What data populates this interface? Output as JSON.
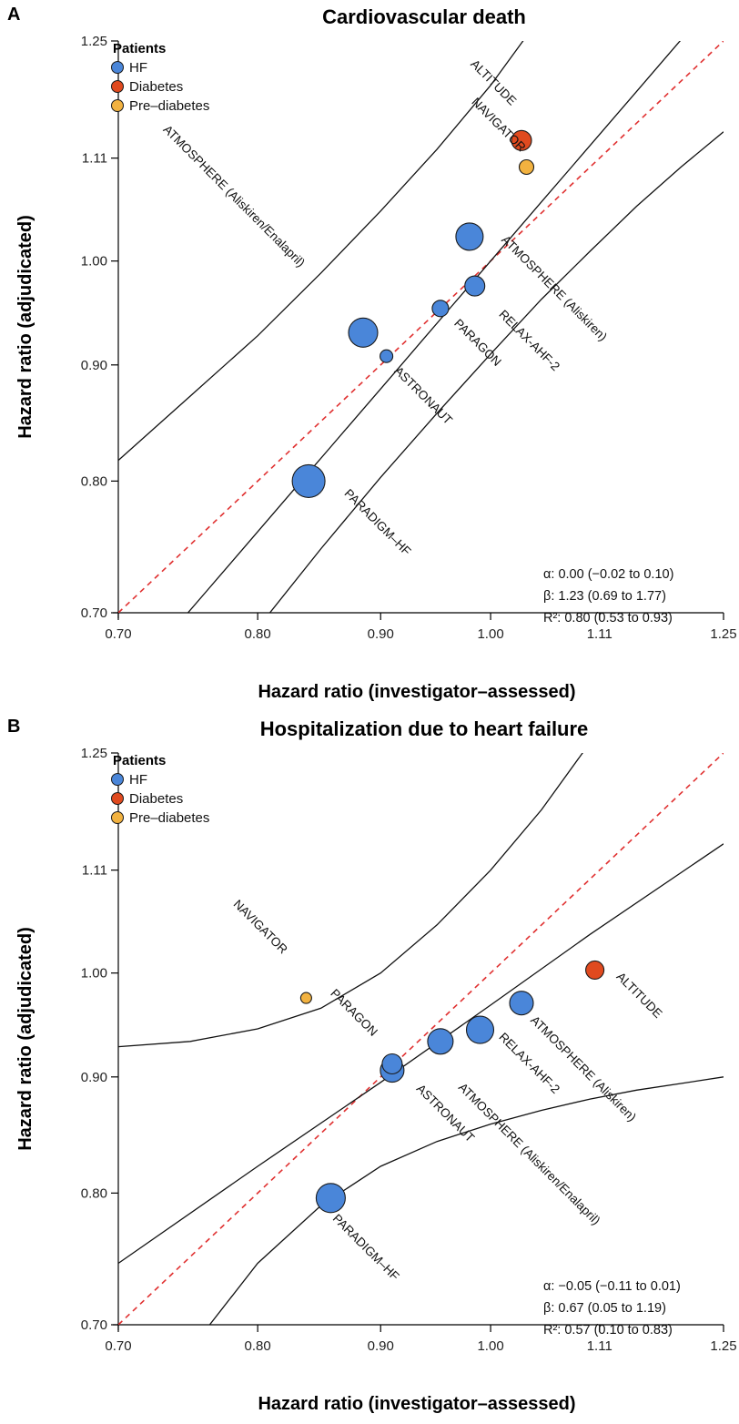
{
  "colors": {
    "HF": "#4a86d9",
    "Diabetes": "#e04a1f",
    "Pre-diabetes": "#f2b240",
    "identity_line": "#e03030"
  },
  "chart_data": [
    {
      "type": "scatter",
      "panel": "A",
      "title": "Cardiovascular death",
      "xlabel": "Hazard ratio (investigator–assessed)",
      "ylabel": "Hazard ratio (adjudicated)",
      "scale": "log",
      "xlim": [
        0.7,
        1.25
      ],
      "ylim": [
        0.7,
        1.25
      ],
      "ticks": [
        0.7,
        0.8,
        0.9,
        1.0,
        1.11,
        1.25
      ],
      "tick_labels": [
        "0.70",
        "0.80",
        "0.90",
        "1.00",
        "1.11",
        "1.25"
      ],
      "legend": {
        "title": "Patients",
        "entries": [
          "HF",
          "Diabetes",
          "Pre–diabetes"
        ],
        "position": "top-left"
      },
      "points": [
        {
          "label": "ALTITUDE",
          "group": "Diabetes",
          "x": 1.03,
          "y": 1.13,
          "size": 11
        },
        {
          "label": "NAVIGATOR",
          "group": "Pre-diabetes",
          "x": 1.035,
          "y": 1.1,
          "size": 8
        },
        {
          "label": "ATMOSPHERE (Aliskiren)",
          "group": "HF",
          "x": 0.98,
          "y": 1.025,
          "size": 15
        },
        {
          "label": "RELAX-AHF-2",
          "group": "HF",
          "x": 0.985,
          "y": 0.975,
          "size": 11
        },
        {
          "label": "PARAGON",
          "group": "HF",
          "x": 0.953,
          "y": 0.953,
          "size": 9
        },
        {
          "label": "ATMOSPHERE (Aliskiren/Enalapril)",
          "group": "HF",
          "x": 0.885,
          "y": 0.93,
          "size": 16
        },
        {
          "label": "ASTRONAUT",
          "group": "HF",
          "x": 0.905,
          "y": 0.908,
          "size": 7
        },
        {
          "label": "PARADIGM–HF",
          "group": "HF",
          "x": 0.84,
          "y": 0.8,
          "size": 18
        }
      ],
      "labels": [
        {
          "text": "ALTITUDE",
          "x": 1.0,
          "y": 1.195,
          "angle": 45
        },
        {
          "text": "NAVIGATOR",
          "x": 1.005,
          "y": 1.145,
          "angle": 45
        },
        {
          "text": "ATMOSPHERE (Aliskiren/Enalapril)",
          "x": 0.78,
          "y": 1.065,
          "angle": 45
        },
        {
          "text": "ATMOSPHERE (Aliskiren)",
          "x": 1.06,
          "y": 0.97,
          "angle": 45
        },
        {
          "text": "RELAX-AHF-2",
          "x": 1.035,
          "y": 0.92,
          "angle": 45
        },
        {
          "text": "PARAGON",
          "x": 0.985,
          "y": 0.918,
          "angle": 45
        },
        {
          "text": "ASTRONAUT",
          "x": 0.935,
          "y": 0.87,
          "angle": 45
        },
        {
          "text": "PARADIGM–HF",
          "x": 0.895,
          "y": 0.765,
          "angle": 45
        }
      ],
      "identity_line": true,
      "fit_line": {
        "alpha": 0.0,
        "beta": 1.23
      },
      "band_upper": [
        [
          0.7,
          0.817
        ],
        [
          0.75,
          0.872
        ],
        [
          0.8,
          0.927
        ],
        [
          0.85,
          0.988
        ],
        [
          0.9,
          1.052
        ],
        [
          0.95,
          1.12
        ],
        [
          1.0,
          1.195
        ],
        [
          1.04,
          1.265
        ]
      ],
      "band_lower": [
        [
          0.805,
          0.695
        ],
        [
          0.85,
          0.747
        ],
        [
          0.9,
          0.803
        ],
        [
          0.95,
          0.857
        ],
        [
          1.0,
          0.91
        ],
        [
          1.05,
          0.962
        ],
        [
          1.1,
          1.01
        ],
        [
          1.15,
          1.057
        ],
        [
          1.2,
          1.1
        ],
        [
          1.25,
          1.14
        ]
      ],
      "stats": [
        "α: 0.00 (−0.02 to 0.10)",
        "β: 1.23 (0.69 to 1.77)",
        "R²: 0.80 (0.53 to 0.93)"
      ]
    },
    {
      "type": "scatter",
      "panel": "B",
      "title": "Hospitalization due to heart failure",
      "xlabel": "Hazard ratio (investigator–assessed)",
      "ylabel": "Hazard ratio (adjudicated)",
      "scale": "log",
      "xlim": [
        0.7,
        1.25
      ],
      "ylim": [
        0.7,
        1.25
      ],
      "ticks": [
        0.7,
        0.8,
        0.9,
        1.0,
        1.11,
        1.25
      ],
      "tick_labels": [
        "0.70",
        "0.80",
        "0.90",
        "1.00",
        "1.11",
        "1.25"
      ],
      "legend": {
        "title": "Patients",
        "entries": [
          "HF",
          "Diabetes",
          "Pre–diabetes"
        ],
        "position": "top-left"
      },
      "points": [
        {
          "label": "NAVIGATOR",
          "group": "Pre-diabetes",
          "x": 0.838,
          "y": 0.975,
          "size": 6
        },
        {
          "label": "ALTITUDE",
          "group": "Diabetes",
          "x": 1.105,
          "y": 1.003,
          "size": 10
        },
        {
          "label": "ATMOSPHERE (Aliskiren)",
          "group": "HF",
          "x": 1.03,
          "y": 0.97,
          "size": 13
        },
        {
          "label": "RELAX-AHF-2",
          "group": "HF",
          "x": 0.99,
          "y": 0.944,
          "size": 15
        },
        {
          "label": "ATMOSPHERE (Aliskiren/Enalapril)",
          "group": "HF",
          "x": 0.953,
          "y": 0.933,
          "size": 14
        },
        {
          "label": "PARAGON",
          "group": "HF",
          "x": 0.91,
          "y": 0.912,
          "size": 11
        },
        {
          "label": "ASTRONAUT",
          "group": "HF",
          "x": 0.91,
          "y": 0.906,
          "size": 13
        },
        {
          "label": "PARADIGM–HF",
          "group": "HF",
          "x": 0.858,
          "y": 0.796,
          "size": 16
        }
      ],
      "labels": [
        {
          "text": "NAVIGATOR",
          "x": 0.8,
          "y": 1.045,
          "angle": 45
        },
        {
          "text": "ALTITUDE",
          "x": 1.15,
          "y": 0.975,
          "angle": 45
        },
        {
          "text": "PARAGON",
          "x": 0.875,
          "y": 0.958,
          "angle": 45
        },
        {
          "text": "ATMOSPHERE (Aliskiren)",
          "x": 1.09,
          "y": 0.905,
          "angle": 45
        },
        {
          "text": "RELAX-AHF-2",
          "x": 1.035,
          "y": 0.91,
          "angle": 45
        },
        {
          "text": "ATMOSPHERE (Aliskiren/Enalapril)",
          "x": 1.035,
          "y": 0.83,
          "angle": 45
        },
        {
          "text": "ASTRONAUT",
          "x": 0.955,
          "y": 0.865,
          "angle": 45
        },
        {
          "text": "PARADIGM–HF",
          "x": 0.885,
          "y": 0.755,
          "angle": 45
        }
      ],
      "identity_line": true,
      "fit_line": {
        "alpha": -0.05,
        "beta": 0.67
      },
      "band_upper": [
        [
          0.7,
          0.928
        ],
        [
          0.75,
          0.933
        ],
        [
          0.8,
          0.945
        ],
        [
          0.85,
          0.965
        ],
        [
          0.9,
          1.0
        ],
        [
          0.95,
          1.05
        ],
        [
          1.0,
          1.11
        ],
        [
          1.05,
          1.18
        ],
        [
          1.095,
          1.255
        ]
      ],
      "band_lower": [
        [
          0.76,
          0.695
        ],
        [
          0.8,
          0.745
        ],
        [
          0.85,
          0.79
        ],
        [
          0.9,
          0.822
        ],
        [
          0.95,
          0.843
        ],
        [
          1.0,
          0.858
        ],
        [
          1.05,
          0.87
        ],
        [
          1.1,
          0.88
        ],
        [
          1.15,
          0.888
        ],
        [
          1.2,
          0.894
        ],
        [
          1.25,
          0.9
        ]
      ],
      "band_mid": [
        [
          0.7,
          0.745
        ],
        [
          0.8,
          0.822
        ],
        [
          0.9,
          0.895
        ],
        [
          1.0,
          0.968
        ],
        [
          1.1,
          1.04
        ],
        [
          1.25,
          1.14
        ]
      ],
      "stats": [
        "α: −0.05 (−0.11 to 0.01)",
        "β: 0.67 (0.05 to 1.19)",
        "R²: 0.57 (0.10 to 0.83)"
      ]
    }
  ]
}
